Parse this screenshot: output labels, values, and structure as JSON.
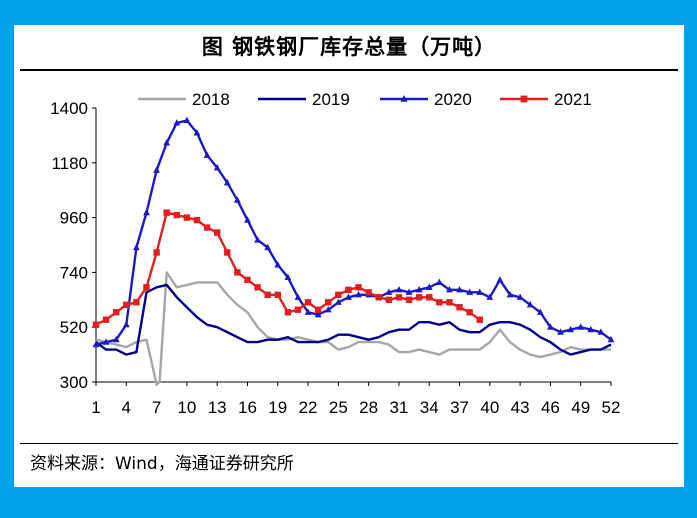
{
  "title": "图  钢铁钢厂库存总量（万吨）",
  "source": "资料来源：Wind，海通证券研究所",
  "chart_data": {
    "type": "line",
    "title": "图  钢铁钢厂库存总量（万吨）",
    "xlabel": "",
    "ylabel": "",
    "unit": "万吨",
    "ylim": [
      300,
      1400
    ],
    "yticks": [
      300,
      520,
      740,
      960,
      1180,
      1400
    ],
    "xlim": [
      1,
      52
    ],
    "xticks": [
      1,
      4,
      7,
      10,
      13,
      16,
      19,
      22,
      25,
      28,
      31,
      34,
      37,
      40,
      43,
      46,
      49,
      52
    ],
    "legend_position": "top",
    "grid": false,
    "series": [
      {
        "name": "2018",
        "color": "#a6a6a6",
        "marker": "none",
        "x": [
          1,
          2,
          3,
          4,
          5,
          6,
          7,
          7.3,
          8,
          9,
          10,
          11,
          12,
          13,
          14,
          15,
          16,
          17,
          18,
          19,
          20,
          21,
          22,
          23,
          24,
          25,
          26,
          27,
          28,
          29,
          30,
          31,
          32,
          33,
          34,
          35,
          36,
          37,
          38,
          39,
          40,
          41,
          42,
          43,
          44,
          45,
          46,
          47,
          48,
          49,
          50,
          51,
          52
        ],
        "y": [
          470,
          460,
          450,
          440,
          460,
          470,
          290,
          300,
          740,
          680,
          690,
          700,
          700,
          700,
          650,
          610,
          580,
          520,
          480,
          470,
          470,
          480,
          470,
          460,
          460,
          430,
          440,
          460,
          460,
          460,
          450,
          420,
          420,
          430,
          420,
          410,
          430,
          430,
          430,
          430,
          460,
          510,
          460,
          430,
          410,
          400,
          410,
          420,
          440,
          430,
          430,
          430,
          430
        ]
      },
      {
        "name": "2019",
        "color": "#00008b",
        "marker": "none",
        "x": [
          1,
          2,
          3,
          4,
          5,
          6,
          7,
          8,
          9,
          10,
          11,
          12,
          13,
          14,
          15,
          16,
          17,
          18,
          19,
          20,
          21,
          22,
          23,
          24,
          25,
          26,
          27,
          28,
          29,
          30,
          31,
          32,
          33,
          34,
          35,
          36,
          37,
          38,
          39,
          40,
          41,
          42,
          43,
          44,
          45,
          46,
          47,
          48,
          49,
          50,
          51,
          52
        ],
        "y": [
          460,
          430,
          430,
          410,
          420,
          660,
          680,
          690,
          640,
          600,
          560,
          530,
          520,
          500,
          480,
          460,
          460,
          470,
          470,
          480,
          460,
          460,
          460,
          470,
          490,
          490,
          480,
          470,
          480,
          500,
          510,
          510,
          540,
          540,
          530,
          540,
          510,
          500,
          500,
          530,
          540,
          540,
          530,
          510,
          480,
          460,
          430,
          410,
          420,
          430,
          430,
          450
        ]
      },
      {
        "name": "2020",
        "color": "#1a1ac8",
        "marker": "triangle",
        "x": [
          1,
          2,
          3,
          4,
          5,
          6,
          7,
          8,
          9,
          10,
          11,
          12,
          13,
          14,
          15,
          16,
          17,
          18,
          19,
          20,
          21,
          22,
          23,
          24,
          25,
          26,
          27,
          28,
          29,
          30,
          31,
          32,
          33,
          34,
          35,
          36,
          37,
          38,
          39,
          40,
          41,
          42,
          43,
          44,
          45,
          46,
          47,
          48,
          49,
          50,
          51,
          52
        ],
        "y": [
          450,
          460,
          470,
          530,
          840,
          980,
          1150,
          1260,
          1340,
          1350,
          1300,
          1210,
          1160,
          1100,
          1030,
          950,
          870,
          840,
          770,
          720,
          640,
          580,
          570,
          590,
          620,
          640,
          650,
          650,
          640,
          660,
          670,
          660,
          670,
          680,
          700,
          670,
          670,
          660,
          660,
          640,
          710,
          650,
          640,
          610,
          580,
          520,
          500,
          510,
          520,
          510,
          500,
          470
        ]
      },
      {
        "name": "2021",
        "color": "#e02020",
        "marker": "square",
        "x": [
          1,
          2,
          3,
          4,
          5,
          6,
          7,
          8,
          9,
          10,
          11,
          12,
          13,
          14,
          15,
          16,
          17,
          18,
          19,
          20,
          21,
          22,
          23,
          24,
          25,
          26,
          27,
          28,
          29,
          30,
          31,
          32,
          33,
          34,
          35,
          36,
          37,
          38,
          39
        ],
        "y": [
          530,
          550,
          580,
          610,
          620,
          680,
          820,
          980,
          970,
          960,
          950,
          920,
          900,
          820,
          740,
          710,
          680,
          650,
          650,
          580,
          590,
          620,
          590,
          620,
          650,
          670,
          680,
          660,
          640,
          630,
          640,
          630,
          640,
          640,
          620,
          620,
          600,
          580,
          550
        ]
      }
    ]
  }
}
